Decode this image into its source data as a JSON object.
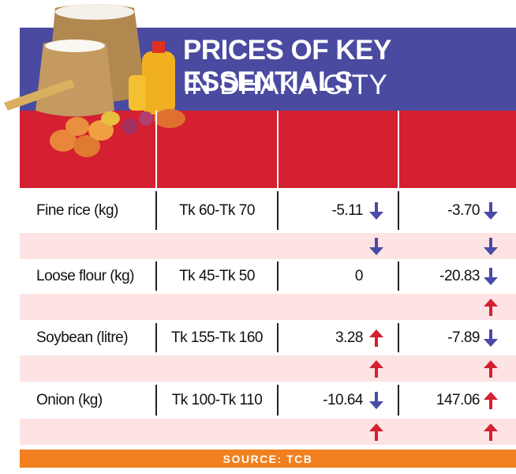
{
  "header": {
    "title_line1": "PRICES OF KEY ESSENTIALS",
    "title_line2": "IN DHAKA CITY"
  },
  "table": {
    "rows": [
      {
        "item": "Fine rice (kg)",
        "price": "Tk 60-Tk 70",
        "change_1": "-5.11",
        "change_2": "-3.70",
        "arrows": [
          "down",
          "down"
        ],
        "sub_arrows": [
          "down",
          "down"
        ]
      },
      {
        "item": "Loose flour (kg)",
        "price": "Tk 45-Tk 50",
        "change_1": "0",
        "change_2": "-20.83",
        "arrows": [
          null,
          "down"
        ],
        "sub_arrows": [
          null,
          "up"
        ]
      },
      {
        "item": "Soybean (litre)",
        "price": "Tk 155-Tk 160",
        "change_1": "3.28",
        "change_2": "-7.89",
        "arrows": [
          "up",
          "down"
        ],
        "sub_arrows": [
          "up",
          "up"
        ]
      },
      {
        "item": "Onion (kg)",
        "price": "Tk 100-Tk 110",
        "change_1": "-10.64",
        "change_2": "147.06",
        "arrows": [
          "down",
          "up"
        ],
        "sub_arrows": [
          "up",
          "up"
        ]
      }
    ]
  },
  "footer": {
    "source": "SOURCE: TCB"
  }
}
